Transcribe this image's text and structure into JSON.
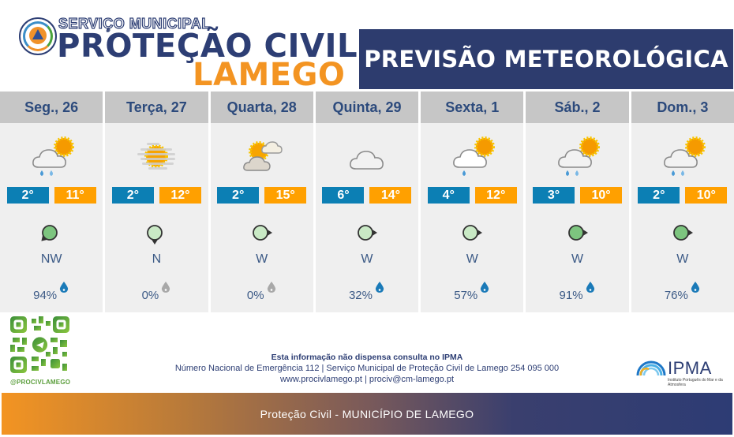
{
  "header": {
    "brand_small": "SERVIÇO MUNICIPAL",
    "brand_big": "PROTEÇÃO CIVIL",
    "brand_city": "LAMEGO",
    "title": "PREVISÃO METEOROLÓGICA"
  },
  "colors": {
    "navy": "#2d3c6e",
    "orange": "#f39422",
    "temp_min": "#0c7fb4",
    "temp_max": "#ffa000"
  },
  "days": [
    {
      "label": "Seg., 26",
      "icon": "sun-cloud-rain-icon",
      "min": "2°",
      "max": "11°",
      "wind_dir": "NW",
      "wind_strength": "moderate",
      "precip": "94%"
    },
    {
      "label": "Terça, 27",
      "icon": "fog-sun-icon",
      "min": "2°",
      "max": "12°",
      "wind_dir": "N",
      "wind_strength": "weak",
      "precip": "0%"
    },
    {
      "label": "Quarta, 28",
      "icon": "sun-clouds-icon",
      "min": "2°",
      "max": "15°",
      "wind_dir": "W",
      "wind_strength": "weak",
      "precip": "0%"
    },
    {
      "label": "Quinta, 29",
      "icon": "cloud-icon",
      "min": "6°",
      "max": "14°",
      "wind_dir": "W",
      "wind_strength": "weak",
      "precip": "32%"
    },
    {
      "label": "Sexta, 1",
      "icon": "sun-cloud-drizzle-icon",
      "min": "4°",
      "max": "12°",
      "wind_dir": "W",
      "wind_strength": "weak",
      "precip": "57%"
    },
    {
      "label": "Sáb., 2",
      "icon": "sun-cloud-rain-icon",
      "min": "3°",
      "max": "10°",
      "wind_dir": "W",
      "wind_strength": "moderate",
      "precip": "91%"
    },
    {
      "label": "Dom., 3",
      "icon": "sun-cloud-rain-icon",
      "min": "2°",
      "max": "10°",
      "wind_dir": "W",
      "wind_strength": "moderate",
      "precip": "76%"
    }
  ],
  "footer": {
    "qr_handle": "@PROCIVLAMEGO",
    "line1": "Esta informação não dispensa consulta no IPMA",
    "line2": "Número Nacional de Emergência 112 | Serviço Municipal de Proteção Civil de Lamego 254 095 000",
    "line3": "www.procivlamego.pt | prociv@cm-lamego.pt",
    "ipma_name": "IPMA",
    "ipma_sub": "Instituto Português do Mar e da Atmosfera",
    "bar_text": "Proteção Civil - MUNICÍPIO DE LAMEGO"
  }
}
